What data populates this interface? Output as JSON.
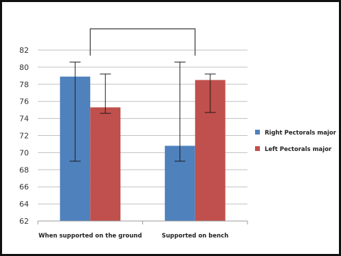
{
  "chart_data": {
    "type": "bar",
    "title": "",
    "xlabel": "",
    "ylabel": "",
    "categories": [
      "When supported on the ground",
      "Supported on bench"
    ],
    "series": [
      {
        "name": "Right Pectorals major",
        "color": "#4f81bd",
        "values": [
          78.9,
          70.8
        ],
        "error_low": [
          69.0,
          69.0
        ],
        "error_high": [
          80.6,
          80.6
        ]
      },
      {
        "name": "Left Pectorals major",
        "color": "#c0504d",
        "values": [
          75.3,
          78.5
        ],
        "error_low": [
          74.6,
          74.7
        ],
        "error_high": [
          79.2,
          79.2
        ]
      }
    ],
    "ylim": [
      62,
      82
    ],
    "yticks": [
      62,
      64,
      66,
      68,
      70,
      72,
      74,
      76,
      78,
      80,
      82
    ],
    "grid": true,
    "legend": "right",
    "annotation": "significance bracket spanning both categories"
  }
}
